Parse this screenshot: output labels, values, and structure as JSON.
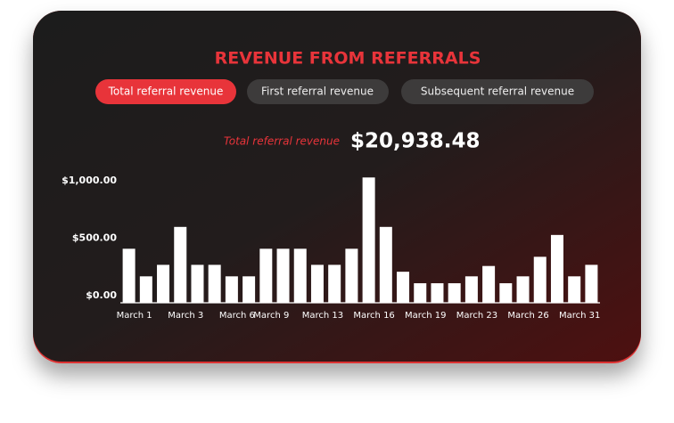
{
  "tabs": [
    "Total referral revenue",
    "First referral revenue",
    "Subsequent referral revenue"
  ],
  "summary": {
    "label": "Total referral revenue",
    "value": "$20,938.48"
  },
  "chart_data": {
    "type": "bar",
    "title": "REVENUE FROM REFERRALS",
    "color": "#ffffff",
    "categories": [
      "March 1",
      null,
      null,
      "March 3",
      null,
      null,
      "March 6",
      null,
      "March 9",
      null,
      null,
      "March 13",
      null,
      null,
      "March 16",
      null,
      null,
      "March 19",
      null,
      null,
      "March 23",
      null,
      null,
      "March 26",
      null,
      null,
      "March 31",
      null
    ],
    "values": [
      470,
      230,
      330,
      660,
      330,
      330,
      230,
      230,
      470,
      470,
      470,
      330,
      330,
      470,
      1090,
      660,
      270,
      170,
      170,
      170,
      230,
      320,
      170,
      230,
      400,
      590,
      230,
      330
    ],
    "ylim": [
      0,
      1100
    ],
    "yticks": [
      {
        "value": 0,
        "label": "$0.00"
      },
      {
        "value": 500,
        "label": "$500.00"
      },
      {
        "value": 1000,
        "label": "$1,000.00"
      }
    ]
  }
}
